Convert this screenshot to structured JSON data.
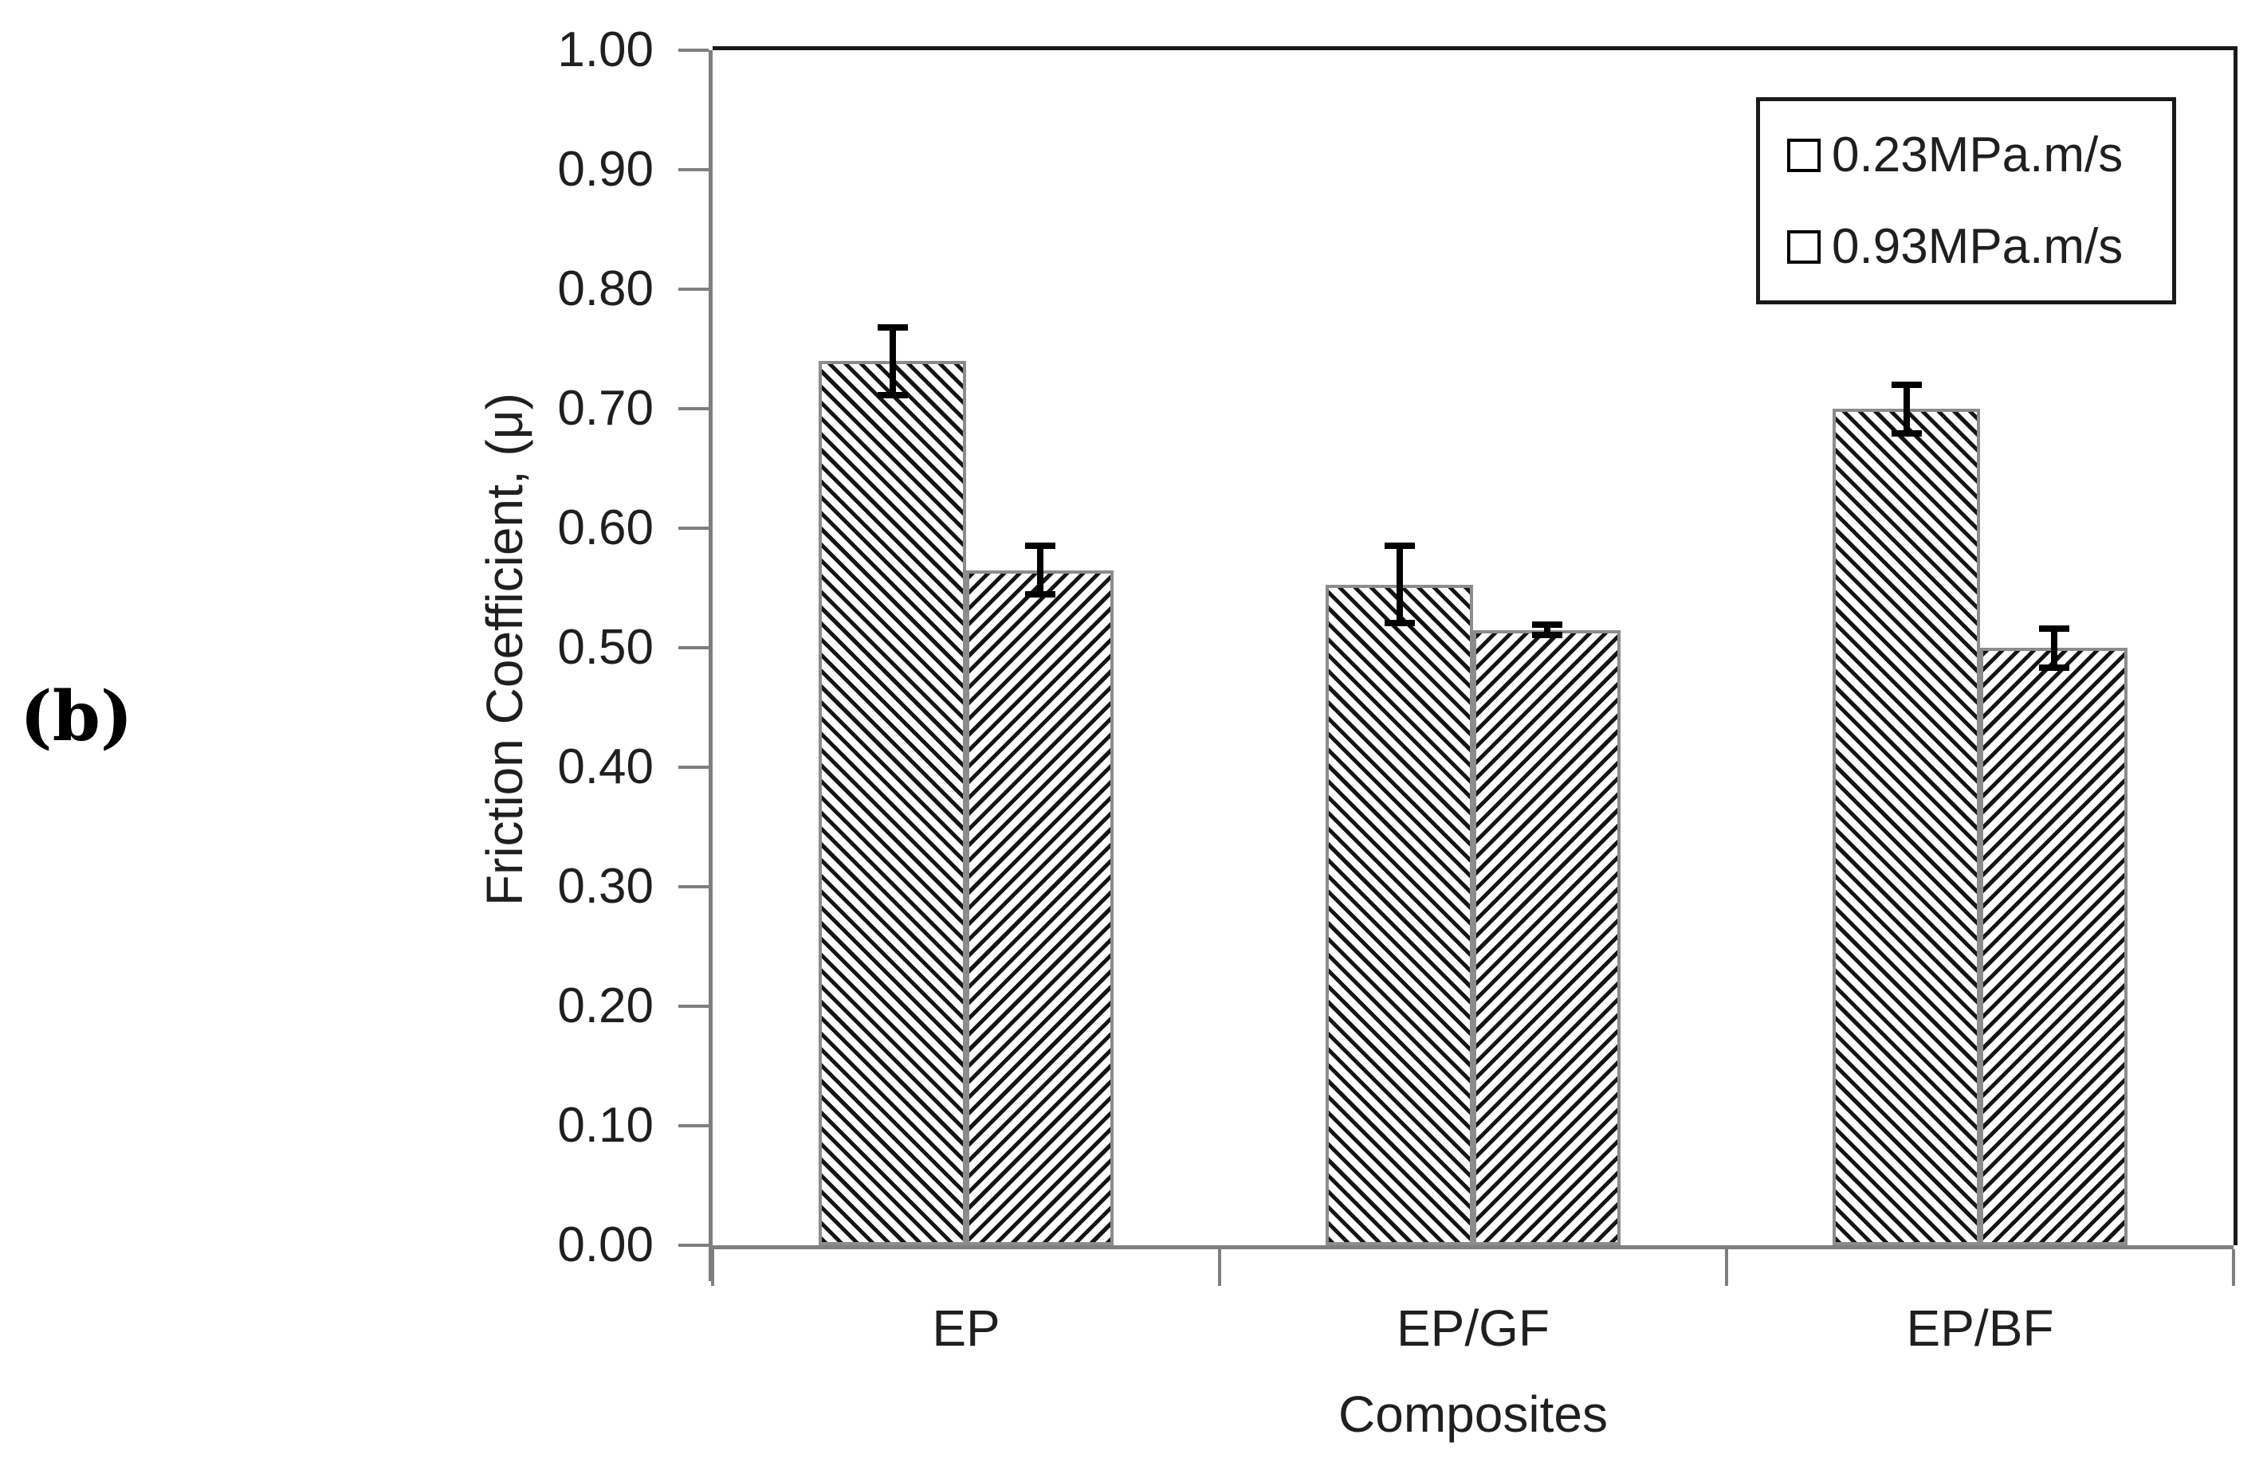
{
  "figure_label": "(b)",
  "chart_data": {
    "type": "bar",
    "title": "",
    "xlabel": "Composites",
    "ylabel": "Friction Coefficient, (μ)",
    "categories": [
      "EP",
      "EP/GF",
      "EP/BF"
    ],
    "series": [
      {
        "name": "0.23MPa.m/s",
        "hatch": "backslash-diagonal",
        "values": [
          0.74,
          0.553,
          0.7
        ],
        "errors": [
          0.031,
          0.035,
          0.023
        ]
      },
      {
        "name": "0.93MPa.m/s",
        "hatch": "slash-diagonal",
        "values": [
          0.565,
          0.515,
          0.5
        ],
        "errors": [
          0.023,
          0.007,
          0.019
        ]
      }
    ],
    "ylim": [
      0.0,
      1.0
    ],
    "ytick_step": 0.1,
    "ytick_labels": [
      "0.00",
      "0.10",
      "0.20",
      "0.30",
      "0.40",
      "0.50",
      "0.60",
      "0.70",
      "0.80",
      "0.90",
      "1.00"
    ],
    "grid": false,
    "legend_position": "top-right",
    "bar_fill": "#ffffff",
    "hatch_color": "#141414",
    "bar_border_color": "#8c8c8c",
    "axis_color": "#7f7f7f",
    "frame_color": "#1a1a1a",
    "error_bar_color": "#000000"
  }
}
